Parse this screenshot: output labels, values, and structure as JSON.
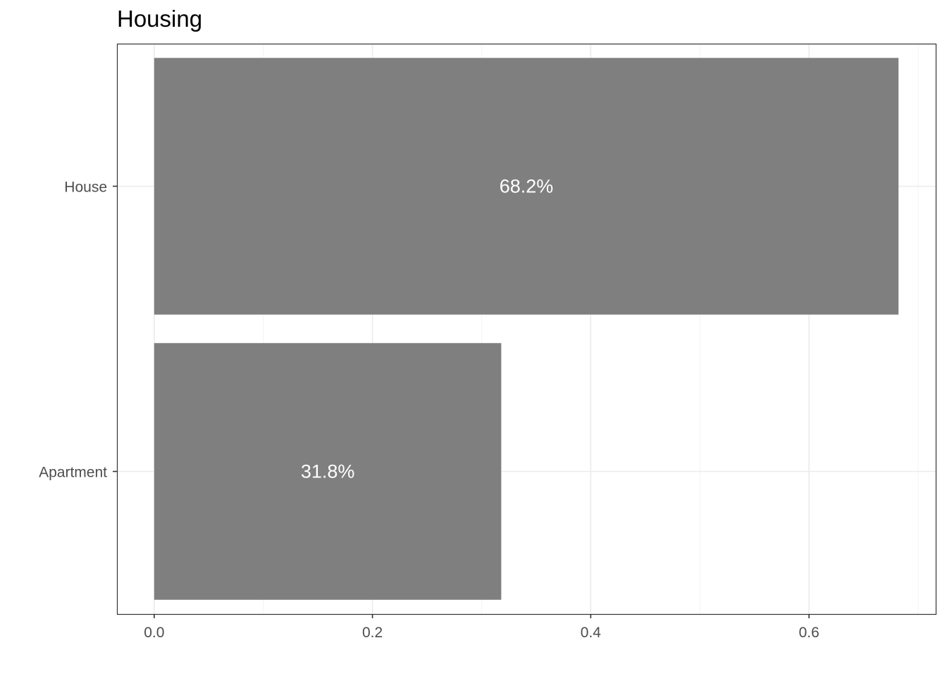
{
  "chart_data": {
    "type": "bar",
    "orientation": "horizontal",
    "title": "Housing",
    "xlabel": "",
    "ylabel": "",
    "categories": [
      "House",
      "Apartment"
    ],
    "values": [
      0.682,
      0.318
    ],
    "labels": [
      "68.2%",
      "31.8%"
    ],
    "xlim": [
      -0.0341,
      0.7161
    ],
    "x_ticks": [
      0.0,
      0.2,
      0.4,
      0.6
    ],
    "x_tick_labels": [
      "0.0",
      "0.2",
      "0.4",
      "0.6"
    ],
    "grid": true,
    "legend": "none",
    "colors": {
      "bar": "#7f7f7f",
      "bar_label": "#ffffff",
      "grid_major": "#ebebeb",
      "grid_minor": "#f5f5f5",
      "panel_border": "#333333",
      "tick_text": "#4d4d4d"
    }
  }
}
